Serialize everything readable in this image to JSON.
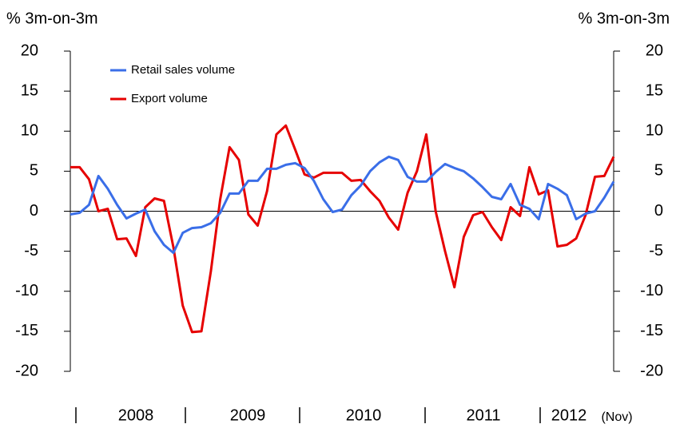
{
  "chart_data": {
    "type": "line",
    "y_label": "% 3m-on-3m",
    "y2_label": "% 3m-on-3m",
    "x_labels": [
      "2008",
      "2009",
      "2010",
      "2011",
      "2012"
    ],
    "x_note": "(Nov)",
    "ylim": [
      -20,
      20
    ],
    "yticks": [
      -20,
      -15,
      -10,
      -5,
      0,
      5,
      10,
      15,
      20
    ],
    "y2lim": [
      -20,
      20
    ],
    "y2ticks": [
      -20,
      -15,
      -10,
      -5,
      0,
      5,
      10,
      15,
      20
    ],
    "legend": "upper left",
    "series": [
      {
        "name": "Retail sales volume",
        "color": "#3a6ee8",
        "values": [
          -0.4,
          -0.2,
          0.8,
          4.4,
          2.8,
          0.8,
          -0.9,
          -0.3,
          0.2,
          -2.5,
          -4.2,
          -5.2,
          -2.7,
          -2.1,
          -2.0,
          -1.5,
          -0.2,
          2.2,
          2.2,
          3.8,
          3.8,
          5.3,
          5.3,
          5.8,
          6.0,
          5.4,
          3.8,
          1.5,
          -0.1,
          0.2,
          2.0,
          3.2,
          5.0,
          6.1,
          6.8,
          6.4,
          4.3,
          3.7,
          3.7,
          4.9,
          5.9,
          5.4,
          5.0,
          4.1,
          3.0,
          1.8,
          1.5,
          3.4,
          0.8,
          0.3,
          -1.0,
          3.4,
          2.8,
          2.0,
          -1.0,
          -0.3,
          0.0,
          1.7,
          3.7
        ]
      },
      {
        "name": "Export volume",
        "color": "#e60000",
        "values": [
          5.5,
          5.5,
          4.0,
          0.0,
          0.3,
          -3.5,
          -3.4,
          -5.6,
          0.5,
          1.6,
          1.3,
          -4.5,
          -11.8,
          -15.1,
          -15.0,
          -7.5,
          1.5,
          8.0,
          6.4,
          -0.4,
          -1.8,
          2.5,
          9.6,
          10.7,
          7.7,
          4.6,
          4.2,
          4.8,
          4.8,
          4.8,
          3.8,
          3.9,
          2.5,
          1.3,
          -0.8,
          -2.3,
          2.3,
          5.0,
          9.6,
          0.0,
          -5.0,
          -9.5,
          -3.2,
          -0.5,
          -0.1,
          -2.0,
          -3.6,
          0.5,
          -0.6,
          5.5,
          2.1,
          2.6,
          -4.4,
          -4.2,
          -3.4,
          -0.5,
          4.3,
          4.4,
          6.8
        ]
      }
    ]
  }
}
